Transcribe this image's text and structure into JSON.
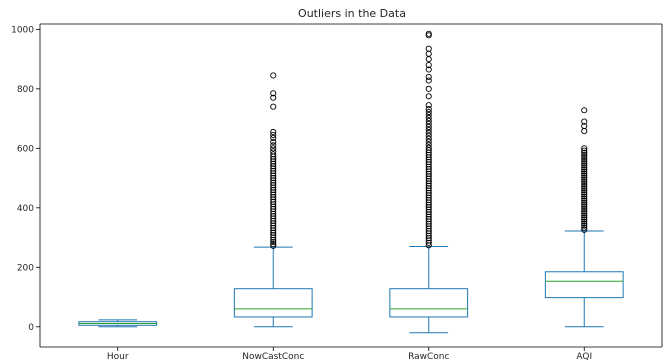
{
  "chart_data": {
    "type": "box",
    "title": "Outliers in the Data",
    "xlabel": "",
    "ylabel": "",
    "ylim": [
      -68,
      1018
    ],
    "yticks": [
      0,
      200,
      400,
      600,
      800,
      1000
    ],
    "grid": false,
    "colors": {
      "box": "#1f77b4",
      "median": "#2ca02c",
      "outlier": "#000000",
      "axis": "#000000"
    },
    "categories": [
      "Hour",
      "NowCastConc",
      "RawConc",
      "AQI"
    ],
    "boxes": [
      {
        "name": "Hour",
        "whislo": 0,
        "q1": 5,
        "med": 11,
        "q3": 17,
        "whishi": 23,
        "fliers": []
      },
      {
        "name": "NowCastConc",
        "whislo": 0,
        "q1": 33,
        "med": 60,
        "q3": 128,
        "whishi": 268,
        "fliers": [
          272,
          278,
          285,
          292,
          300,
          308,
          316,
          324,
          332,
          340,
          348,
          356,
          364,
          372,
          380,
          388,
          396,
          404,
          412,
          420,
          428,
          436,
          444,
          452,
          460,
          468,
          476,
          484,
          492,
          500,
          508,
          516,
          524,
          532,
          540,
          548,
          556,
          564,
          572,
          580,
          590,
          600,
          610,
          622,
          635,
          645,
          655,
          740,
          770,
          785,
          845
        ]
      },
      {
        "name": "RawConc",
        "whislo": -20,
        "q1": 33,
        "med": 60,
        "q3": 128,
        "whishi": 270,
        "fliers": [
          274,
          282,
          290,
          298,
          306,
          314,
          322,
          330,
          338,
          346,
          354,
          362,
          370,
          378,
          386,
          394,
          402,
          410,
          418,
          426,
          434,
          442,
          450,
          458,
          466,
          474,
          482,
          490,
          498,
          506,
          514,
          522,
          530,
          538,
          546,
          554,
          562,
          570,
          578,
          586,
          594,
          602,
          612,
          622,
          632,
          642,
          652,
          662,
          672,
          682,
          692,
          702,
          712,
          722,
          732,
          745,
          775,
          800,
          828,
          840,
          865,
          880,
          900,
          918,
          935,
          980,
          985
        ]
      },
      {
        "name": "AQI",
        "whislo": 0,
        "q1": 98,
        "med": 153,
        "q3": 185,
        "whishi": 322,
        "fliers": [
          326,
          333,
          340,
          347,
          354,
          361,
          368,
          375,
          382,
          389,
          396,
          403,
          410,
          417,
          424,
          431,
          438,
          445,
          452,
          459,
          466,
          473,
          480,
          487,
          494,
          501,
          508,
          515,
          522,
          529,
          536,
          543,
          550,
          557,
          564,
          571,
          578,
          585,
          592,
          600,
          658,
          675,
          690,
          728
        ]
      }
    ]
  }
}
